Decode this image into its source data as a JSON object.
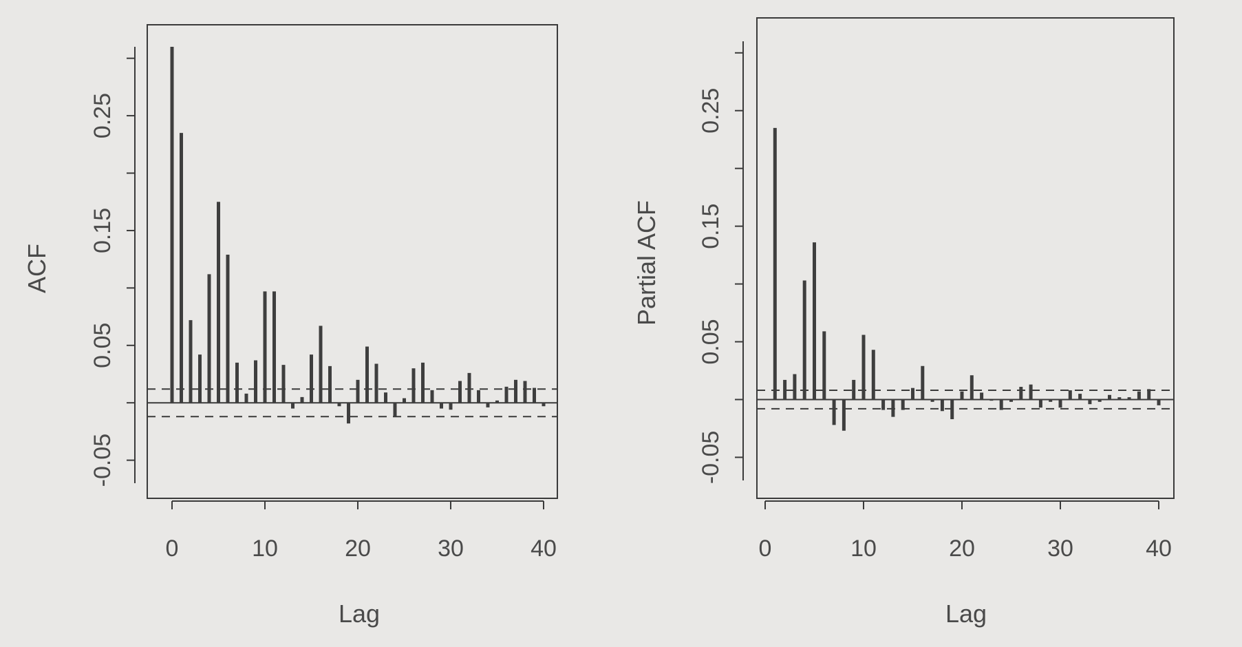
{
  "chart_data": [
    {
      "type": "bar",
      "subtype": "autocorrelation",
      "title": "",
      "xlabel": "Lag",
      "ylabel": "ACF",
      "xlim": [
        0,
        40
      ],
      "ylim": [
        -0.07,
        0.31
      ],
      "x_ticks": [
        0,
        10,
        20,
        30,
        40
      ],
      "x_tick_labels": [
        "0",
        "10",
        "20",
        "30",
        "40"
      ],
      "y_ticks": [
        -0.05,
        0.05,
        0.15,
        0.25
      ],
      "y_tick_labels": [
        "-0.05",
        "0.05",
        "0.15",
        "0.25"
      ],
      "confidence_band": [
        -0.012,
        0.012
      ],
      "x": [
        0,
        1,
        2,
        3,
        4,
        5,
        6,
        7,
        8,
        9,
        10,
        11,
        12,
        13,
        14,
        15,
        16,
        17,
        18,
        19,
        20,
        21,
        22,
        23,
        24,
        25,
        26,
        27,
        28,
        29,
        30,
        31,
        32,
        33,
        34,
        35,
        36,
        37,
        38,
        39,
        40
      ],
      "values": [
        0.31,
        0.235,
        0.072,
        0.042,
        0.112,
        0.175,
        0.129,
        0.035,
        0.008,
        0.037,
        0.097,
        0.097,
        0.033,
        -0.005,
        0.005,
        0.042,
        0.067,
        0.032,
        -0.003,
        -0.018,
        0.02,
        0.049,
        0.034,
        0.009,
        -0.012,
        0.004,
        0.03,
        0.035,
        0.011,
        -0.005,
        -0.006,
        0.019,
        0.026,
        0.011,
        -0.004,
        0.002,
        0.014,
        0.02,
        0.019,
        0.013,
        -0.003
      ]
    },
    {
      "type": "bar",
      "subtype": "partial-autocorrelation",
      "title": "",
      "xlabel": "Lag",
      "ylabel": "Partial ACF",
      "xlim": [
        0,
        40
      ],
      "ylim": [
        -0.07,
        0.31
      ],
      "x_ticks": [
        0,
        10,
        20,
        30,
        40
      ],
      "x_tick_labels": [
        "0",
        "10",
        "20",
        "30",
        "40"
      ],
      "y_ticks": [
        -0.05,
        0.05,
        0.15,
        0.25
      ],
      "y_tick_labels": [
        "-0.05",
        "0.05",
        "0.15",
        "0.25"
      ],
      "confidence_band": [
        -0.008,
        0.008
      ],
      "x": [
        1,
        2,
        3,
        4,
        5,
        6,
        7,
        8,
        9,
        10,
        11,
        12,
        13,
        14,
        15,
        16,
        17,
        18,
        19,
        20,
        21,
        22,
        23,
        24,
        25,
        26,
        27,
        28,
        29,
        30,
        31,
        32,
        33,
        34,
        35,
        36,
        37,
        38,
        39,
        40
      ],
      "values": [
        0.235,
        0.017,
        0.022,
        0.103,
        0.136,
        0.059,
        -0.022,
        -0.027,
        0.017,
        0.056,
        0.043,
        -0.009,
        -0.015,
        -0.009,
        0.01,
        0.029,
        -0.002,
        -0.01,
        -0.017,
        0.007,
        0.021,
        0.006,
        -0.001,
        -0.009,
        -0.002,
        0.011,
        0.013,
        -0.007,
        -0.002,
        -0.007,
        0.008,
        0.005,
        -0.004,
        -0.002,
        0.004,
        0.002,
        0.002,
        0.007,
        0.009,
        -0.005
      ]
    }
  ]
}
